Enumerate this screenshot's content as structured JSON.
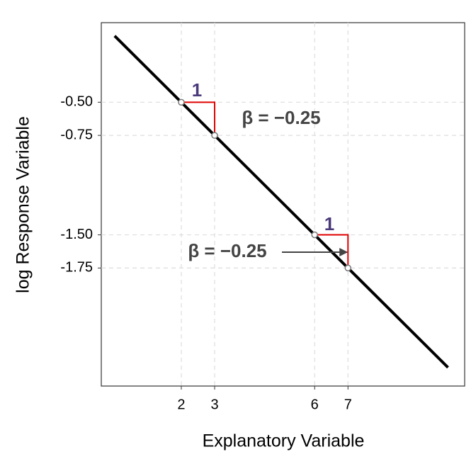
{
  "chart_data": {
    "type": "line",
    "xlabel": "Explanatory Variable",
    "ylabel": "log Response Variable",
    "series": [
      {
        "x": [
          0,
          10
        ],
        "values": [
          0,
          -2.5
        ],
        "color": "#000000"
      }
    ],
    "points": {
      "x": [
        2,
        3,
        6,
        7
      ],
      "values": [
        -0.5,
        -0.75,
        -1.5,
        -1.75
      ]
    },
    "triangle_color": "#e00000",
    "annotations": [
      {
        "text": "1"
      },
      {
        "text": "β = −0.25"
      },
      {
        "text": "1"
      },
      {
        "text": "β = −0.25"
      }
    ],
    "xlim": [
      -0.4,
      10.5
    ],
    "ylim": [
      -2.64,
      0.1
    ],
    "xticks": [
      2,
      3,
      6,
      7
    ],
    "yticks": [
      {
        "value": -0.5,
        "label": "-0.50"
      },
      {
        "value": -0.75,
        "label": "-0.75"
      },
      {
        "value": -1.5,
        "label": "-1.50"
      },
      {
        "value": -1.75,
        "label": "-1.75"
      }
    ],
    "grid": true
  }
}
